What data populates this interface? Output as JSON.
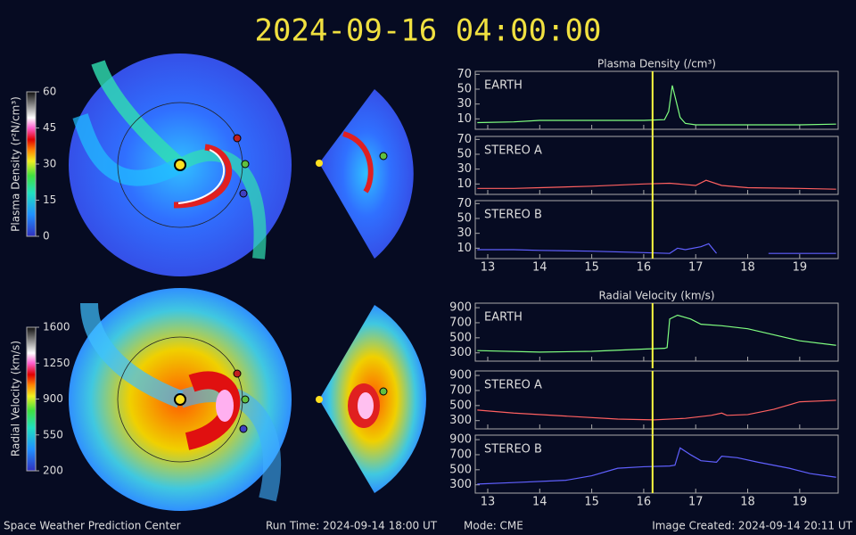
{
  "title": "2024-09-16 04:00:00",
  "time_marker": 16.17,
  "colorbars": [
    {
      "label": "Plasma Density (r²N/cm³)",
      "lim": [
        0,
        60
      ],
      "ticks": [
        0,
        15,
        30,
        45,
        60
      ]
    },
    {
      "label": "Radial Velocity (km/s)",
      "lim": [
        200,
        1600
      ],
      "ticks": [
        200,
        550,
        900,
        1250,
        1600
      ]
    }
  ],
  "chart_data": [
    {
      "type": "line",
      "title": "Plasma Density (/cm³)",
      "xlim": [
        12.76,
        19.74
      ],
      "ylim": [
        -4,
        74
      ],
      "yticks": [
        10,
        30,
        50,
        70
      ],
      "x": [
        12.8,
        13.5,
        14.0,
        15.0,
        16.0,
        16.4,
        16.48,
        16.55,
        16.62,
        16.7,
        16.8,
        17.0,
        17.5,
        18.0,
        19.0,
        19.7
      ],
      "series": [
        {
          "name": "EARTH",
          "color": "#80ff80",
          "values": [
            5,
            6,
            8,
            8,
            8,
            9,
            20,
            55,
            35,
            12,
            4,
            2,
            2,
            2,
            2,
            3
          ]
        }
      ]
    },
    {
      "type": "line",
      "xlim": [
        12.76,
        19.74
      ],
      "ylim": [
        -4,
        74
      ],
      "yticks": [
        10,
        30,
        50,
        70
      ],
      "x": [
        12.8,
        13.5,
        14.0,
        15.0,
        16.0,
        16.5,
        17.0,
        17.2,
        17.5,
        18.0,
        19.0,
        19.7
      ],
      "series": [
        {
          "name": "STEREO A",
          "color": "#ff6060",
          "values": [
            4,
            4,
            5,
            7,
            10,
            11,
            8,
            15,
            8,
            5,
            4,
            3
          ]
        }
      ]
    },
    {
      "type": "line",
      "xlim": [
        12.76,
        19.74
      ],
      "ylim": [
        -4,
        74
      ],
      "yticks": [
        10,
        30,
        50,
        70
      ],
      "x": [
        12.8,
        13.5,
        14.0,
        15.0,
        16.0,
        16.5,
        16.65,
        16.8,
        17.1,
        17.25,
        17.4,
        18.0,
        18.4,
        19.0,
        19.7
      ],
      "xticks": [
        13,
        14,
        15,
        16,
        17,
        18,
        19
      ],
      "series": [
        {
          "name": "STEREO B",
          "color": "#6060ff",
          "values": [
            8,
            8,
            7,
            6,
            4,
            3,
            10,
            8,
            12,
            16,
            3,
            null,
            3,
            3,
            3
          ]
        }
      ]
    },
    {
      "type": "line",
      "title": "Radial Velocity (km/s)",
      "xlim": [
        12.76,
        19.74
      ],
      "ylim": [
        190,
        960
      ],
      "yticks": [
        300,
        500,
        700,
        900
      ],
      "x": [
        12.8,
        14.0,
        15.0,
        16.0,
        16.4,
        16.45,
        16.5,
        16.65,
        16.9,
        17.1,
        17.5,
        18.0,
        18.5,
        19.0,
        19.7
      ],
      "series": [
        {
          "name": "EARTH",
          "color": "#80ff80",
          "values": [
            330,
            310,
            320,
            350,
            360,
            370,
            750,
            800,
            750,
            680,
            660,
            620,
            540,
            460,
            400
          ]
        }
      ]
    },
    {
      "type": "line",
      "xlim": [
        12.76,
        19.74
      ],
      "ylim": [
        190,
        960
      ],
      "yticks": [
        300,
        500,
        700,
        900
      ],
      "x": [
        12.8,
        13.5,
        14.5,
        15.5,
        16.2,
        16.8,
        17.3,
        17.5,
        17.6,
        18.0,
        18.5,
        19.0,
        19.7
      ],
      "series": [
        {
          "name": "STEREO A",
          "color": "#ff6060",
          "values": [
            440,
            400,
            360,
            320,
            310,
            330,
            370,
            400,
            370,
            380,
            450,
            550,
            570
          ]
        }
      ]
    },
    {
      "type": "line",
      "xlim": [
        12.76,
        19.74
      ],
      "ylim": [
        190,
        960
      ],
      "yticks": [
        300,
        500,
        700,
        900
      ],
      "x": [
        12.8,
        13.5,
        14.5,
        15.0,
        15.5,
        16.0,
        16.5,
        16.6,
        16.7,
        16.9,
        17.1,
        17.4,
        17.5,
        17.8,
        18.2,
        18.8,
        19.2,
        19.7
      ],
      "xticks": [
        13,
        14,
        15,
        16,
        17,
        18,
        19
      ],
      "series": [
        {
          "name": "STEREO B",
          "color": "#6060ff",
          "values": [
            310,
            330,
            360,
            420,
            520,
            540,
            550,
            560,
            790,
            700,
            620,
            600,
            680,
            660,
            600,
            520,
            450,
            400
          ]
        }
      ]
    }
  ],
  "footer": {
    "left": "Space Weather Prediction Center",
    "run_time": "Run Time: 2024-09-14 18:00 UT",
    "mode": "Mode: CME",
    "created": "Image Created: 2024-09-14 20:11 UT"
  }
}
